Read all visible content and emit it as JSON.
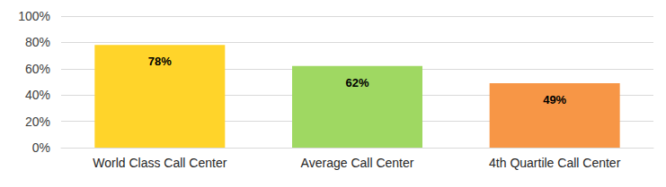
{
  "chart_data": {
    "type": "bar",
    "categories": [
      "World Class Call Center",
      "Average Call Center",
      "4th Quartile Call Center"
    ],
    "values": [
      78,
      62,
      49
    ],
    "value_labels": [
      "78%",
      "62%",
      "49%"
    ],
    "colors": [
      "#ffd42a",
      "#9fd862",
      "#f79646"
    ],
    "ylim": [
      0,
      100
    ],
    "yticks": [
      {
        "value": 0,
        "label": "0%"
      },
      {
        "value": 20,
        "label": "20%"
      },
      {
        "value": 40,
        "label": "40%"
      },
      {
        "value": 60,
        "label": "60%"
      },
      {
        "value": 80,
        "label": "80%"
      },
      {
        "value": 100,
        "label": "100%"
      }
    ],
    "grid": true,
    "data_labels": true
  }
}
